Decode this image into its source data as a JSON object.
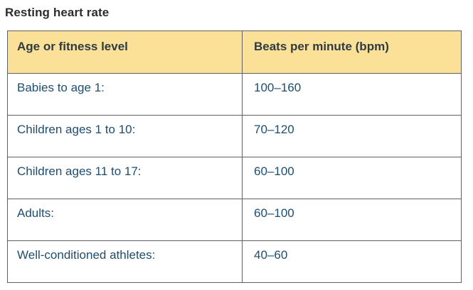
{
  "page": {
    "background_color": "#ffffff",
    "title": "Resting heart rate"
  },
  "table": {
    "style": {
      "header_background_color": "#fbe097",
      "header_text_color": "#2f3b43",
      "body_text_color": "#1d4d6f",
      "border_color": "#5d6064"
    },
    "columns": [
      {
        "label": "Age or fitness level"
      },
      {
        "label": "Beats per minute (bpm)"
      }
    ],
    "rows": [
      {
        "label": "Babies to age 1:",
        "value": "100–160"
      },
      {
        "label": "Children ages 1 to 10:",
        "value": "70–120"
      },
      {
        "label": "Children ages 11 to 17:",
        "value": "60–100"
      },
      {
        "label": "Adults:",
        "value": "60–100"
      },
      {
        "label": "Well-conditioned athletes:",
        "value": "40–60"
      }
    ]
  }
}
